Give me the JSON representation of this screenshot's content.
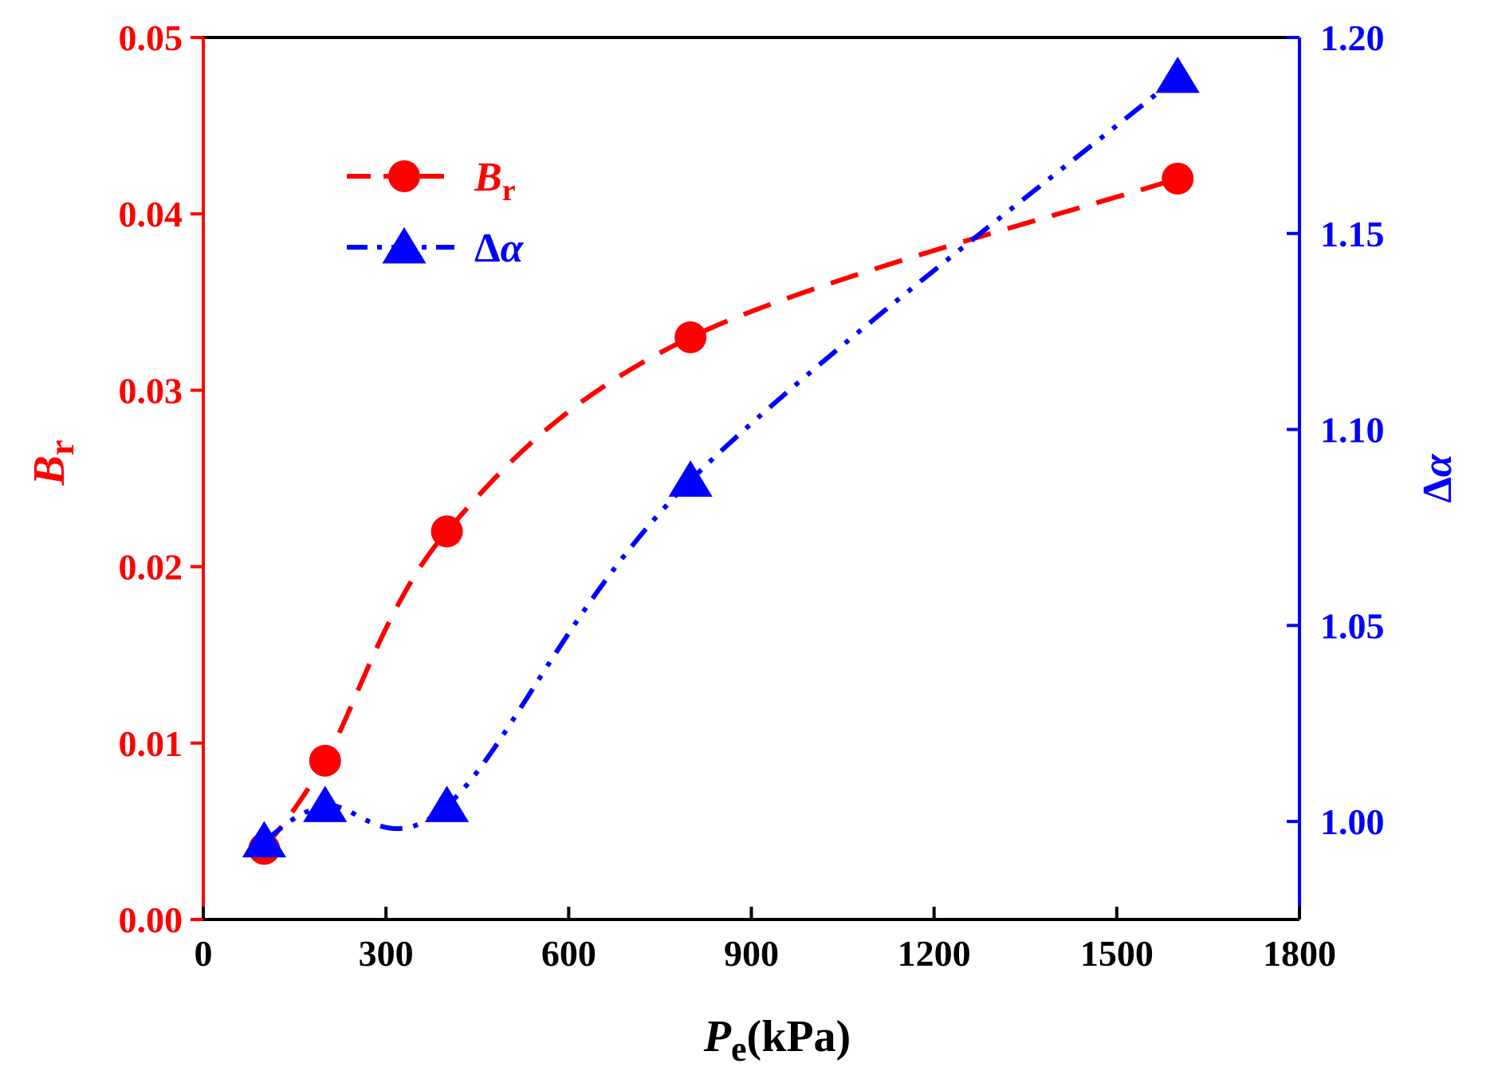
{
  "chart_data": {
    "type": "line",
    "xlabel": {
      "main": "P",
      "sub": "e",
      "unit": "(kPa)"
    },
    "ylabel_left": {
      "main": "B",
      "sub": "r"
    },
    "ylabel_right": {
      "delta": "Δ",
      "main": "α"
    },
    "xlim": [
      0,
      1800
    ],
    "ylim_left": [
      0.0,
      0.05
    ],
    "ylim_right": [
      0.975,
      1.2
    ],
    "x_ticks": [
      0,
      300,
      600,
      900,
      1200,
      1500,
      1800
    ],
    "x_tick_labels": [
      "0",
      "300",
      "600",
      "900",
      "1200",
      "1500",
      "1800"
    ],
    "y_left_ticks": [
      0.0,
      0.01,
      0.02,
      0.03,
      0.04,
      0.05
    ],
    "y_left_tick_labels": [
      "0.00",
      "0.01",
      "0.02",
      "0.03",
      "0.04",
      "0.05"
    ],
    "y_right_ticks": [
      1.0,
      1.05,
      1.1,
      1.15,
      1.2
    ],
    "y_right_tick_labels": [
      "1.00",
      "1.05",
      "1.10",
      "1.15",
      "1.20"
    ],
    "legend_position": "top-left",
    "series": [
      {
        "name": "Br",
        "legend_main": "B",
        "legend_sub": "r",
        "axis": "left",
        "color": "#ff0000",
        "marker": "circle",
        "line_style": "dash",
        "x": [
          100,
          200,
          400,
          800,
          1600
        ],
        "values": [
          0.004,
          0.009,
          0.022,
          0.033,
          0.042
        ]
      },
      {
        "name": "Δα",
        "legend_delta": "Δ",
        "legend_main": "α",
        "axis": "right",
        "color": "#0000ff",
        "marker": "triangle",
        "line_style": "dash-dot-dot",
        "x": [
          100,
          200,
          400,
          800,
          1600
        ],
        "values": [
          0.995,
          1.004,
          1.004,
          1.087,
          1.19
        ]
      }
    ]
  }
}
